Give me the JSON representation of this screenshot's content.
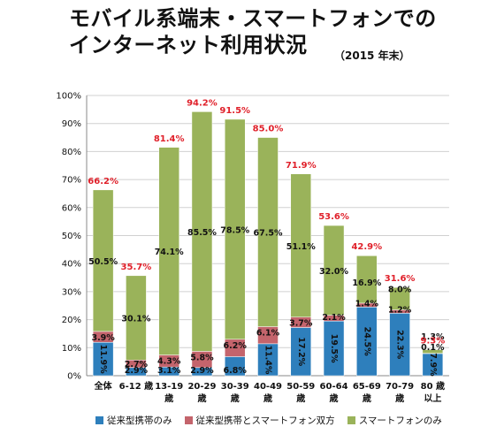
{
  "header": {
    "title_line1": "モバイル系端末・スマートフォンでの",
    "title_line2": "インターネット利用状況",
    "subtitle": "（2015 年末）"
  },
  "colors": {
    "feature_only": "#2e7fbc",
    "both": "#c4646c",
    "smartphone_only": "#9ab35a",
    "total_label": "#e0202a"
  },
  "chart_data": {
    "type": "bar",
    "stacked": true,
    "categories": [
      "全体",
      "6-12 歳",
      "13-19 歳",
      "20-29 歳",
      "30-39 歳",
      "40-49 歳",
      "50-59 歳",
      "60-64 歳",
      "65-69 歳",
      "70-79 歳",
      "80 歳以上"
    ],
    "category_lines": [
      [
        "全体"
      ],
      [
        "6-12 歳"
      ],
      [
        "13-19",
        "歳"
      ],
      [
        "20-29",
        "歳"
      ],
      [
        "30-39",
        "歳"
      ],
      [
        "40-49",
        "歳"
      ],
      [
        "50-59",
        "歳"
      ],
      [
        "60-64",
        "歳"
      ],
      [
        "65-69",
        "歳"
      ],
      [
        "70-79",
        "歳"
      ],
      [
        "80 歳",
        "以上"
      ]
    ],
    "series": [
      {
        "name": "従来型携帯のみ",
        "values": [
          11.9,
          2.9,
          3.1,
          2.9,
          6.8,
          11.4,
          17.2,
          19.5,
          24.5,
          22.3,
          7.9
        ],
        "labels": [
          "11.9%",
          "2.9%",
          "3.1%",
          "2.9%",
          "6.8%",
          "11.4%",
          "17.2%",
          "19.5%",
          "24.5%",
          "22.3%",
          "7.9%"
        ]
      },
      {
        "name": "従来型携帯とスマートフォン双方",
        "values": [
          3.9,
          2.7,
          4.3,
          5.8,
          6.2,
          6.1,
          3.7,
          2.1,
          1.4,
          1.2,
          0.1
        ],
        "labels": [
          "3.9%",
          "2.7%",
          "4.3%",
          "5.8%",
          "6.2%",
          "6.1%",
          "3.7%",
          "2.1%",
          "1.4%",
          "1.2%",
          "0.1%"
        ]
      },
      {
        "name": "スマートフォンのみ",
        "values": [
          50.5,
          30.1,
          74.1,
          85.5,
          78.5,
          67.5,
          51.1,
          32.0,
          16.9,
          8.0,
          1.3
        ],
        "labels": [
          "50.5%",
          "30.1%",
          "74.1%",
          "85.5%",
          "78.5%",
          "67.5%",
          "51.1%",
          "32.0%",
          "16.9%",
          "8.0%",
          "1.3%"
        ]
      }
    ],
    "totals": [
      66.2,
      35.7,
      81.4,
      94.2,
      91.5,
      85.0,
      71.9,
      53.6,
      42.9,
      31.6,
      9.3
    ],
    "total_labels": [
      "66.2%",
      "35.7%",
      "81.4%",
      "94.2%",
      "91.5%",
      "85.0%",
      "71.9%",
      "53.6%",
      "42.9%",
      "31.6%",
      "9.3%"
    ],
    "y_ticks": [
      "0%",
      "10%",
      "20%",
      "30%",
      "40%",
      "50%",
      "60%",
      "70%",
      "80%",
      "90%",
      "100%"
    ],
    "ylim": [
      0,
      100
    ],
    "grid": true,
    "legend_position": "bottom"
  }
}
